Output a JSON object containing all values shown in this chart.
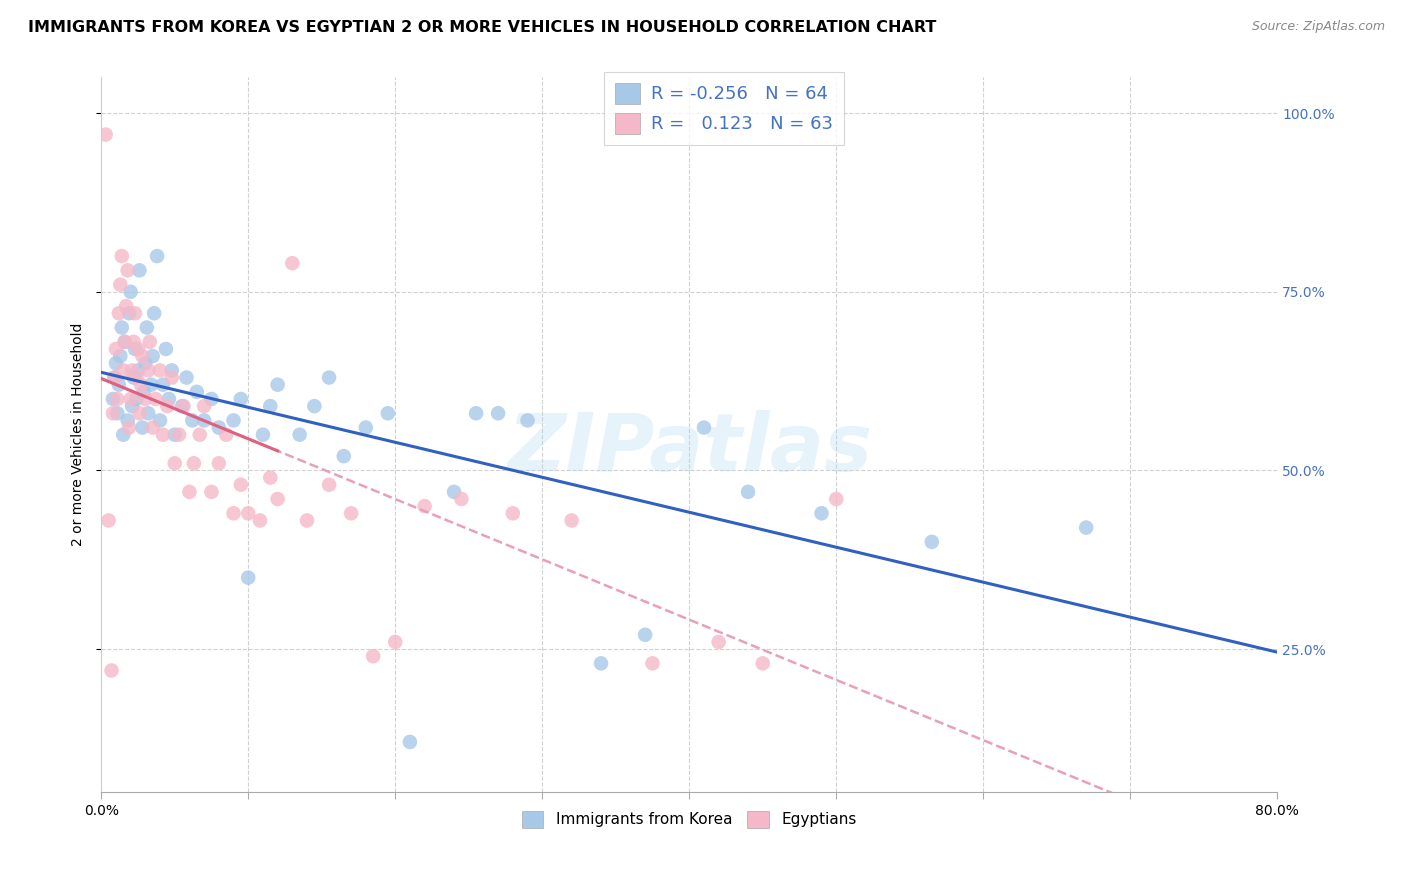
{
  "title": "IMMIGRANTS FROM KOREA VS EGYPTIAN 2 OR MORE VEHICLES IN HOUSEHOLD CORRELATION CHART",
  "source": "Source: ZipAtlas.com",
  "ylabel": "2 or more Vehicles in Household",
  "xlim": [
    0.0,
    0.8
  ],
  "ylim": [
    0.05,
    1.05
  ],
  "korea_R": "-0.256",
  "korea_N": "64",
  "egypt_R": "0.123",
  "egypt_N": "63",
  "korea_color": "#a8c8e8",
  "egypt_color": "#f5b8c8",
  "korea_line_color": "#3060c0",
  "egypt_line_solid_color": "#e06080",
  "egypt_line_dash_color": "#e8a0b8",
  "legend_korea_label": "Immigrants from Korea",
  "legend_egypt_label": "Egyptians",
  "watermark": "ZIPatlas",
  "korea_x": [
    0.008,
    0.009,
    0.01,
    0.011,
    0.012,
    0.013,
    0.014,
    0.015,
    0.016,
    0.018,
    0.019,
    0.02,
    0.021,
    0.022,
    0.023,
    0.024,
    0.025,
    0.026,
    0.028,
    0.029,
    0.03,
    0.031,
    0.032,
    0.034,
    0.035,
    0.036,
    0.038,
    0.04,
    0.042,
    0.044,
    0.046,
    0.048,
    0.05,
    0.055,
    0.058,
    0.062,
    0.065,
    0.07,
    0.075,
    0.08,
    0.09,
    0.095,
    0.1,
    0.11,
    0.115,
    0.12,
    0.135,
    0.145,
    0.155,
    0.165,
    0.18,
    0.195,
    0.21,
    0.24,
    0.255,
    0.27,
    0.29,
    0.34,
    0.37,
    0.41,
    0.44,
    0.49,
    0.565,
    0.67
  ],
  "korea_y": [
    0.6,
    0.63,
    0.65,
    0.58,
    0.62,
    0.66,
    0.7,
    0.55,
    0.68,
    0.57,
    0.72,
    0.75,
    0.59,
    0.63,
    0.67,
    0.6,
    0.64,
    0.78,
    0.56,
    0.61,
    0.65,
    0.7,
    0.58,
    0.62,
    0.66,
    0.72,
    0.8,
    0.57,
    0.62,
    0.67,
    0.6,
    0.64,
    0.55,
    0.59,
    0.63,
    0.57,
    0.61,
    0.57,
    0.6,
    0.56,
    0.57,
    0.6,
    0.35,
    0.55,
    0.59,
    0.62,
    0.55,
    0.59,
    0.63,
    0.52,
    0.56,
    0.58,
    0.12,
    0.47,
    0.58,
    0.58,
    0.57,
    0.23,
    0.27,
    0.56,
    0.47,
    0.44,
    0.4,
    0.42
  ],
  "egypt_x": [
    0.003,
    0.005,
    0.007,
    0.008,
    0.009,
    0.01,
    0.011,
    0.012,
    0.013,
    0.014,
    0.015,
    0.016,
    0.017,
    0.018,
    0.019,
    0.02,
    0.021,
    0.022,
    0.023,
    0.024,
    0.025,
    0.026,
    0.027,
    0.028,
    0.03,
    0.032,
    0.033,
    0.035,
    0.037,
    0.04,
    0.042,
    0.045,
    0.048,
    0.05,
    0.053,
    0.056,
    0.06,
    0.063,
    0.067,
    0.07,
    0.075,
    0.08,
    0.085,
    0.09,
    0.095,
    0.1,
    0.108,
    0.115,
    0.12,
    0.13,
    0.14,
    0.155,
    0.17,
    0.185,
    0.2,
    0.22,
    0.245,
    0.28,
    0.32,
    0.375,
    0.42,
    0.45,
    0.5
  ],
  "egypt_y": [
    0.97,
    0.43,
    0.22,
    0.58,
    0.63,
    0.67,
    0.6,
    0.72,
    0.76,
    0.8,
    0.64,
    0.68,
    0.73,
    0.78,
    0.56,
    0.6,
    0.64,
    0.68,
    0.72,
    0.63,
    0.67,
    0.58,
    0.62,
    0.66,
    0.6,
    0.64,
    0.68,
    0.56,
    0.6,
    0.64,
    0.55,
    0.59,
    0.63,
    0.51,
    0.55,
    0.59,
    0.47,
    0.51,
    0.55,
    0.59,
    0.47,
    0.51,
    0.55,
    0.44,
    0.48,
    0.44,
    0.43,
    0.49,
    0.46,
    0.79,
    0.43,
    0.48,
    0.44,
    0.24,
    0.26,
    0.45,
    0.46,
    0.44,
    0.43,
    0.23,
    0.26,
    0.23,
    0.46
  ],
  "background_color": "#ffffff",
  "grid_color": "#cccccc"
}
